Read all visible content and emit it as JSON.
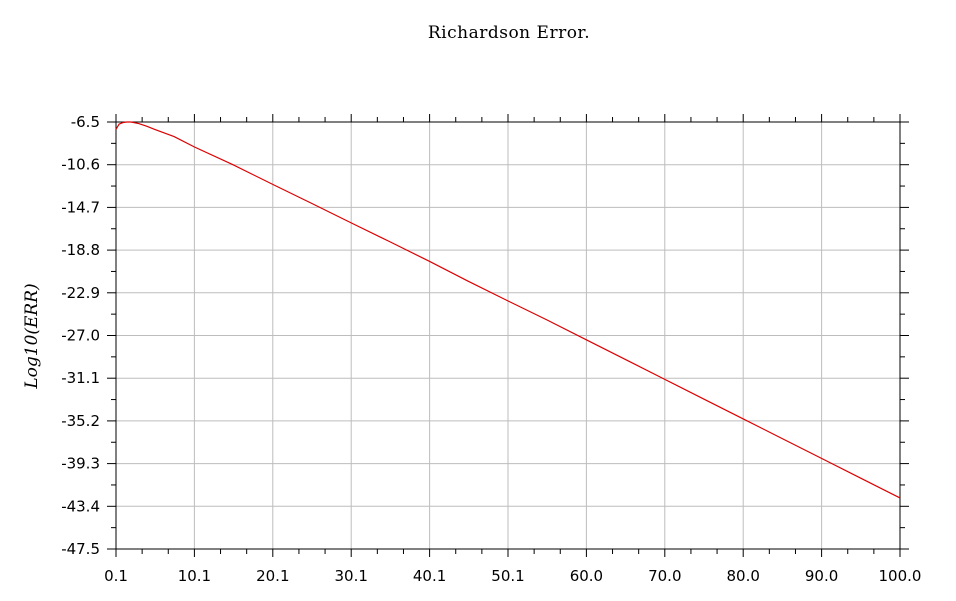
{
  "chart_data": {
    "type": "line",
    "title": "Richardson Error.",
    "xlabel": "",
    "ylabel": "Log10(ERR)",
    "xlim": [
      0.1,
      100.0
    ],
    "ylim": [
      -47.5,
      -6.5
    ],
    "x_ticks": [
      "0.1",
      "10.1",
      "20.1",
      "30.1",
      "40.1",
      "50.1",
      "60.0",
      "70.0",
      "80.0",
      "90.0",
      "100.0"
    ],
    "y_ticks": [
      "-6.5",
      "-10.6",
      "-14.7",
      "-18.8",
      "-22.9",
      "-27.0",
      "-31.1",
      "-35.2",
      "-39.3",
      "-43.4",
      "-47.5"
    ],
    "grid": true,
    "series": [
      {
        "color": "#dd0000",
        "x": [
          0.1,
          0.5,
          1.0,
          1.5,
          2.0,
          3.0,
          4.0,
          5.0,
          7.5,
          10.1,
          15.0,
          20.1,
          25.0,
          30.1,
          35.0,
          40.1,
          45.0,
          50.1,
          55.0,
          60.0,
          65.0,
          70.0,
          75.0,
          80.0,
          85.0,
          90.0,
          95.0,
          100.0
        ],
        "y": [
          -7.2,
          -6.7,
          -6.55,
          -6.5,
          -6.5,
          -6.65,
          -6.9,
          -7.2,
          -7.9,
          -8.9,
          -10.6,
          -12.5,
          -14.3,
          -16.2,
          -18.0,
          -19.9,
          -21.8,
          -23.7,
          -25.5,
          -27.4,
          -29.3,
          -31.2,
          -33.1,
          -35.0,
          -36.9,
          -38.8,
          -40.7,
          -42.6
        ]
      }
    ]
  }
}
